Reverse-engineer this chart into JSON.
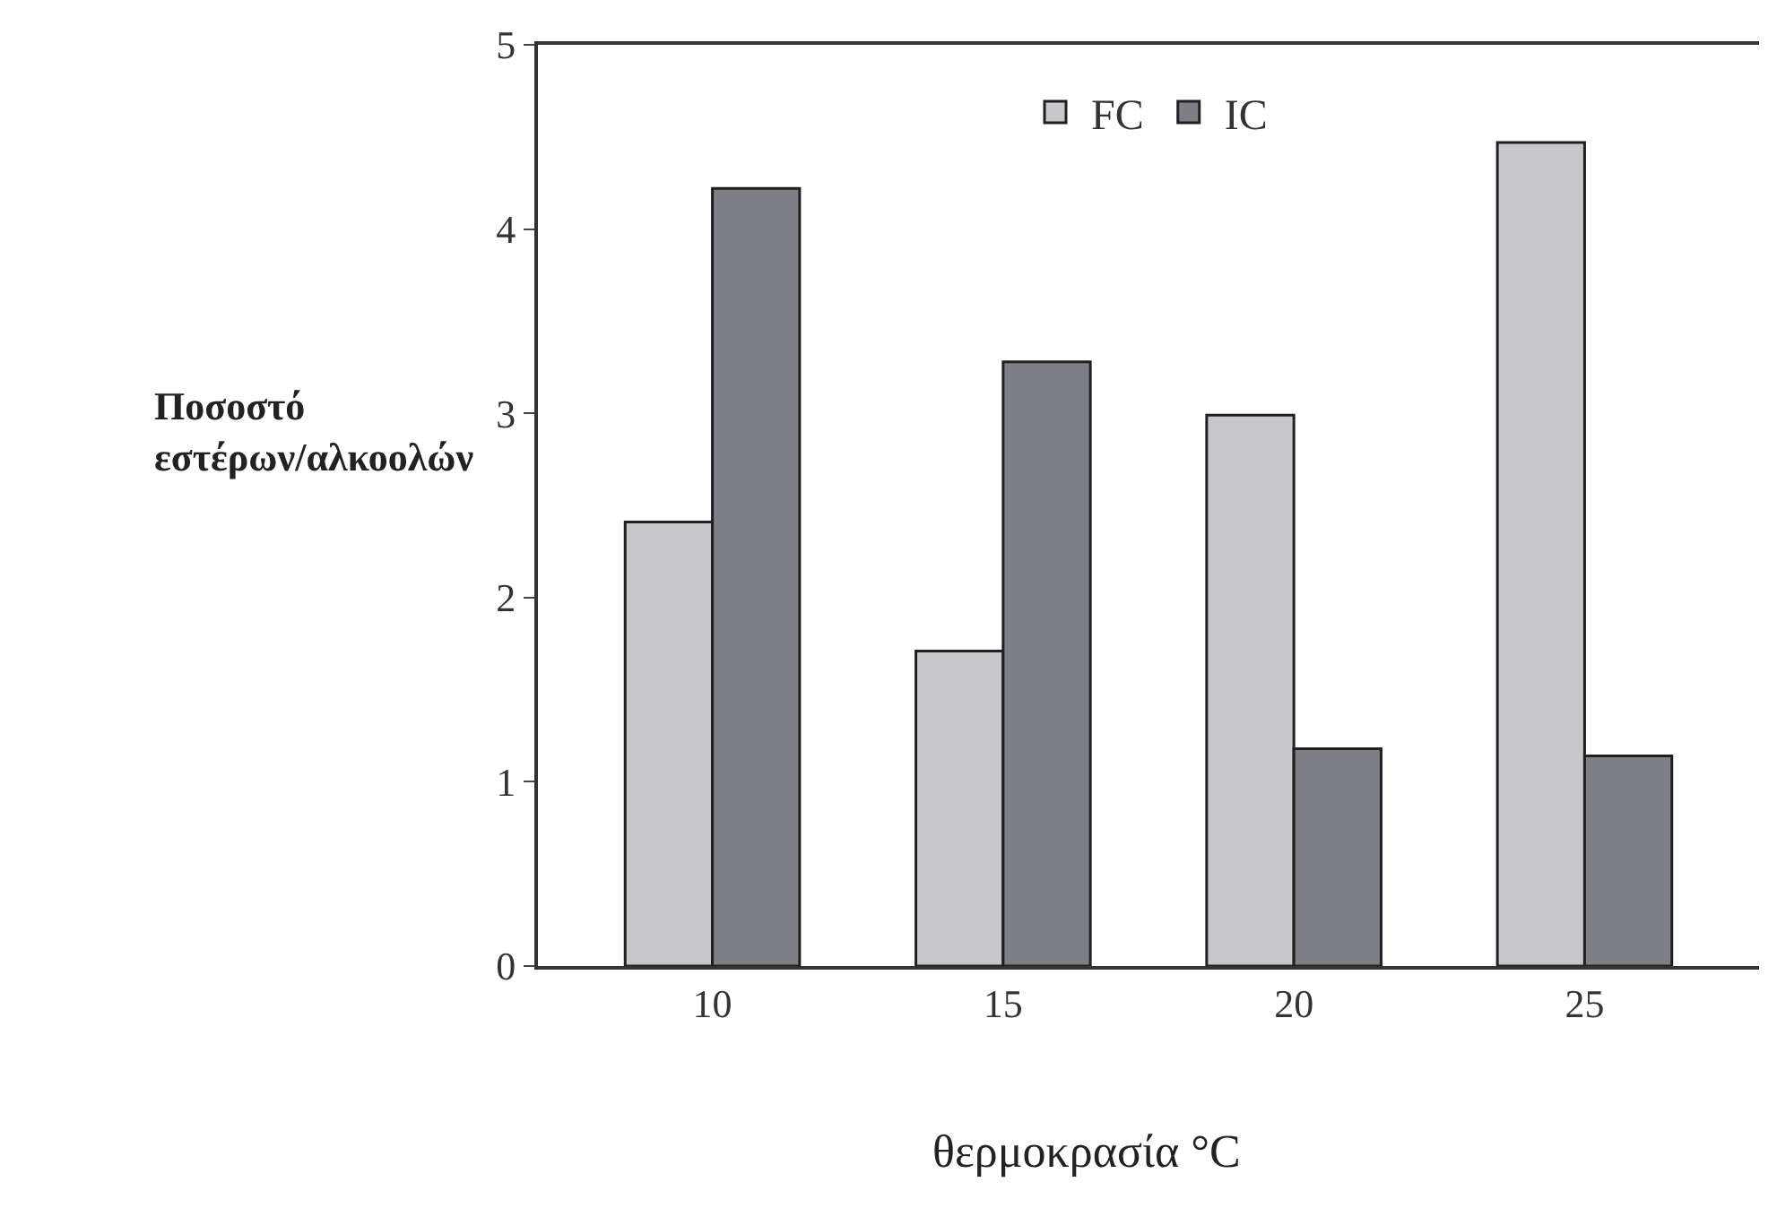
{
  "chart_data": {
    "type": "bar",
    "xlabel": "θερμοκρασία °C",
    "ylabel": "Ποσοστό\nεστέρων/αλκοολών",
    "categories": [
      "10",
      "15",
      "20",
      "25"
    ],
    "series": [
      {
        "name": "FC",
        "color": "#c8c8cc",
        "values": [
          2.41,
          1.71,
          2.99,
          4.47
        ]
      },
      {
        "name": "IC",
        "color": "#7e7e86",
        "values": [
          4.22,
          3.28,
          1.18,
          1.14
        ]
      }
    ],
    "ylim": [
      0,
      5
    ],
    "yticks": [
      0,
      1,
      2,
      3,
      4,
      5
    ],
    "grid": false,
    "legend": "top"
  }
}
